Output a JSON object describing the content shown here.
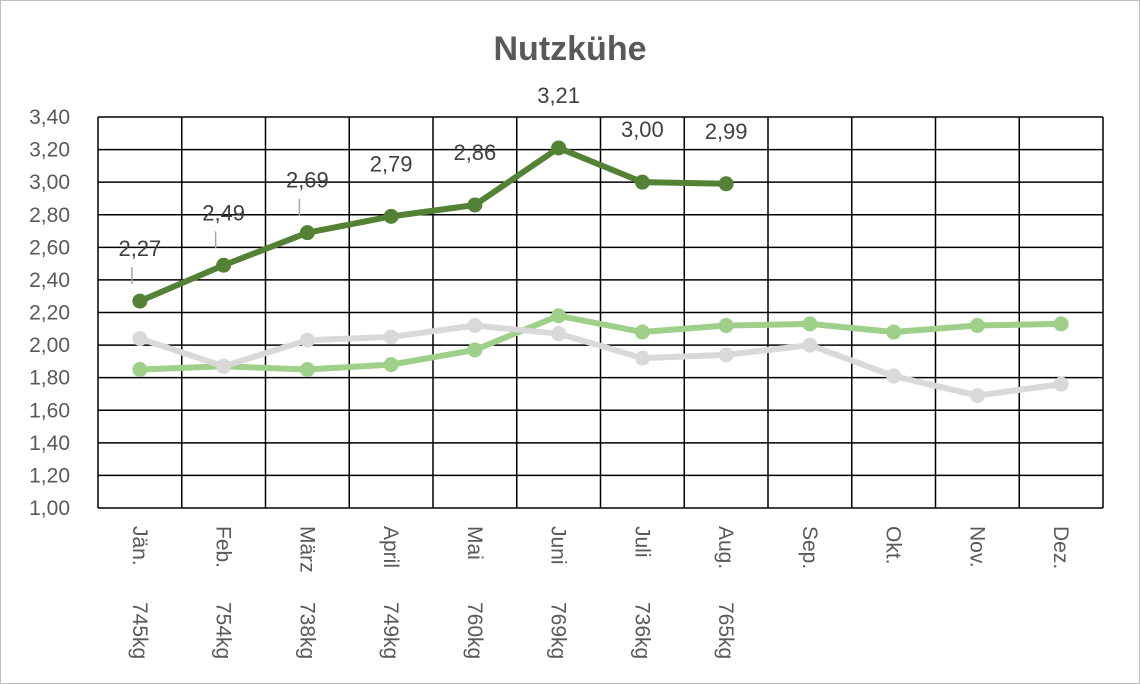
{
  "chart_data": {
    "type": "line",
    "title": "Nutzkühe",
    "categories": [
      [
        "Jän.",
        "745kg"
      ],
      [
        "Feb.",
        "754kg"
      ],
      [
        "März",
        "738kg"
      ],
      [
        "April",
        "749kg"
      ],
      [
        "Mai",
        "760kg"
      ],
      [
        "Juni",
        "769kg"
      ],
      [
        "Juli",
        "736kg"
      ],
      [
        "Aug.",
        "765kg"
      ],
      [
        "Sep.",
        ""
      ],
      [
        "Okt.",
        ""
      ],
      [
        "Nov.",
        ""
      ],
      [
        "Dez.",
        ""
      ]
    ],
    "ylim": [
      1.0,
      3.4
    ],
    "ystep": 0.2,
    "grid": true,
    "series": [
      {
        "color": "#9fd08a",
        "values": [
          1.85,
          1.87,
          1.85,
          1.88,
          1.97,
          2.18,
          2.08,
          2.12,
          2.13,
          2.08,
          2.12,
          2.13
        ],
        "labels": false
      },
      {
        "color": "#d9d9d9",
        "values": [
          2.04,
          1.87,
          2.03,
          2.05,
          2.12,
          2.07,
          1.92,
          1.94,
          2.0,
          1.81,
          1.69,
          1.76
        ],
        "labels": false
      },
      {
        "color": "#548235",
        "values": [
          2.27,
          2.49,
          2.69,
          2.79,
          2.86,
          3.21,
          3.0,
          2.99,
          null,
          null,
          null,
          null
        ],
        "labels": true,
        "label_text": [
          "2,27",
          "2,49",
          "2,69",
          "2,79",
          "2,86",
          "3,21",
          "3,00",
          "2,99"
        ]
      }
    ]
  }
}
